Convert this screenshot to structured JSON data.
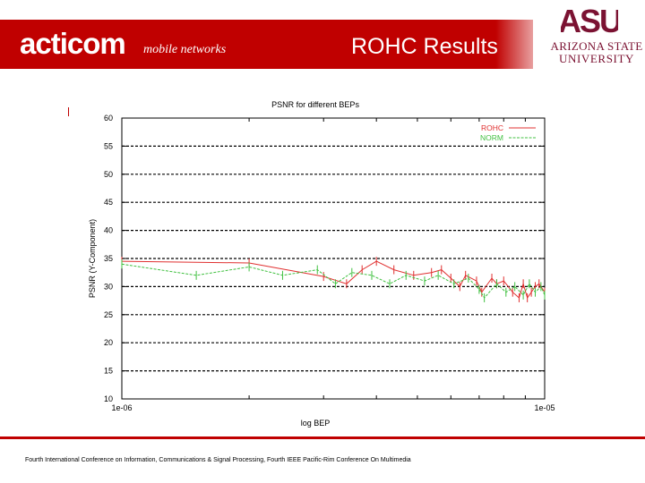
{
  "header": {
    "brand_name": "acticom",
    "brand_tagline": "mobile networks",
    "slide_title": "ROHC Results",
    "brand_color": "#c00000",
    "asu_line1": "ARIZONA STATE",
    "asu_line2": "UNIVERSITY",
    "asu_letters": "ASU",
    "asu_color": "#7b1232"
  },
  "footer": {
    "text": "Fourth International Conference on Information, Communications & Signal Processing, Fourth IEEE Pacific-Rim Conference On Multimedia"
  },
  "chart_data": {
    "type": "line",
    "title": "PSNR for different BEPs",
    "xlabel": "log BEP",
    "ylabel": "PSNR (Y-Component)",
    "x_scale": "log",
    "xlim": [
      1e-06,
      1e-05
    ],
    "ylim": [
      10,
      60
    ],
    "x_tick_labels": [
      "1e-06",
      "1e-05"
    ],
    "y_ticks": [
      10,
      15,
      20,
      25,
      30,
      35,
      40,
      45,
      50,
      55,
      60
    ],
    "grid": true,
    "legend_position": "top-right",
    "series": [
      {
        "name": "ROHC",
        "color": "#e03030",
        "dash": "solid",
        "points": [
          [
            1e-06,
            34.5
          ],
          [
            2e-06,
            34.2
          ],
          [
            3e-06,
            31.8
          ],
          [
            3.4e-06,
            30.5
          ],
          [
            3.7e-06,
            33.0
          ],
          [
            4e-06,
            34.5
          ],
          [
            4.4e-06,
            33.0
          ],
          [
            4.9e-06,
            32.0
          ],
          [
            5.4e-06,
            32.5
          ],
          [
            5.7e-06,
            33.0
          ],
          [
            6e-06,
            31.5
          ],
          [
            6.3e-06,
            30.0
          ],
          [
            6.5e-06,
            32.0
          ],
          [
            6.9e-06,
            31.0
          ],
          [
            7.1e-06,
            29.0
          ],
          [
            7.5e-06,
            31.5
          ],
          [
            7.7e-06,
            30.5
          ],
          [
            8e-06,
            31.0
          ],
          [
            8.4e-06,
            29.0
          ],
          [
            8.7e-06,
            28.0
          ],
          [
            8.9e-06,
            30.5
          ],
          [
            9.1e-06,
            28.0
          ],
          [
            9.3e-06,
            29.0
          ],
          [
            9.5e-06,
            30.0
          ],
          [
            9.7e-06,
            30.5
          ],
          [
            1e-05,
            29.0
          ]
        ]
      },
      {
        "name": "NORM",
        "color": "#40c040",
        "dash": "dashed",
        "points": [
          [
            1e-06,
            34.0
          ],
          [
            1.5e-06,
            32.0
          ],
          [
            2e-06,
            33.5
          ],
          [
            2.4e-06,
            32.0
          ],
          [
            2.9e-06,
            33.0
          ],
          [
            3.2e-06,
            30.5
          ],
          [
            3.5e-06,
            32.5
          ],
          [
            3.9e-06,
            32.0
          ],
          [
            4.3e-06,
            30.5
          ],
          [
            4.7e-06,
            32.0
          ],
          [
            5.2e-06,
            31.0
          ],
          [
            5.6e-06,
            32.0
          ],
          [
            6.1e-06,
            30.5
          ],
          [
            6.6e-06,
            31.5
          ],
          [
            7e-06,
            29.5
          ],
          [
            7.2e-06,
            28.0
          ],
          [
            7.7e-06,
            30.5
          ],
          [
            8.1e-06,
            29.0
          ],
          [
            8.5e-06,
            30.0
          ],
          [
            8.9e-06,
            28.5
          ],
          [
            9.2e-06,
            30.5
          ],
          [
            9.5e-06,
            29.0
          ],
          [
            9.8e-06,
            30.0
          ],
          [
            1e-05,
            28.5
          ]
        ]
      }
    ]
  }
}
